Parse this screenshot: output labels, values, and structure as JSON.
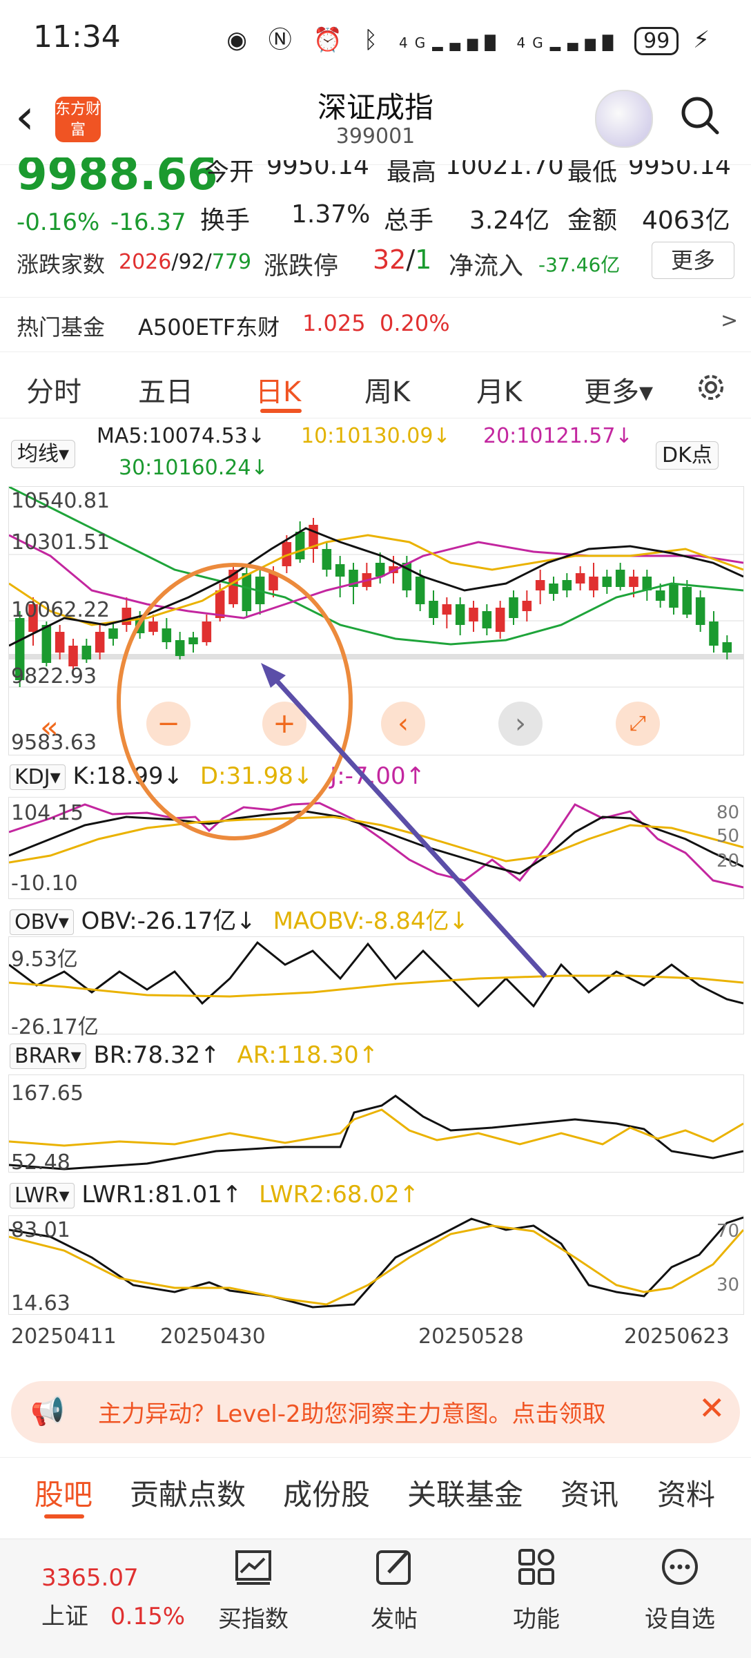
{
  "status": {
    "time": "11:34",
    "battery": "99",
    "net_a": "4G",
    "net_b": "4G"
  },
  "header": {
    "title": "深证成指",
    "code": "399001",
    "logo": "东方财富"
  },
  "quote": {
    "last_price": "9988.66",
    "change_pct": "-0.16%",
    "change": "-16.37",
    "open_label": "今开",
    "open": "9950.14",
    "high_label": "最高",
    "high": "10021.70",
    "low_label": "最低",
    "low": "9950.14",
    "turnover_label": "换手",
    "turnover": "1.37%",
    "volume_label": "总手",
    "volume": "3.24亿",
    "amount_label": "金额",
    "amount": "4063亿",
    "breadth_label": "涨跌家数",
    "breadth_up": "2026",
    "breadth_flat": "92",
    "breadth_down": "779",
    "limit_label": "涨跌停",
    "limit_up": "32",
    "limit_down": "1",
    "inflow_label": "净流入",
    "inflow": "-37.46亿",
    "more": "更多"
  },
  "fund": {
    "label": "热门基金",
    "name": "A500ETF东财",
    "price": "1.025",
    "pct": "0.20%",
    "arrow": ">"
  },
  "period_tabs": [
    "分时",
    "五日",
    "日K",
    "周K",
    "月K",
    "更多▾"
  ],
  "ma": {
    "select": "均线▾",
    "ma5": "MA5:10074.53↓",
    "ma10": "10:10130.09↓",
    "ma20": "20:10121.57↓",
    "ma30": "30:10160.24↓",
    "dk": "DK点"
  },
  "kline_axis": {
    "top": "10540.81",
    "mid1": "10301.51",
    "mid2": "10062.22",
    "mid3": "9822.93",
    "bottom": "9583.63"
  },
  "kdj": {
    "select": "KDJ▾",
    "k": "K:18.99↓",
    "d": "D:31.98↓",
    "j": "J:-7.00↑",
    "top": "104.15",
    "bottom": "-10.10",
    "r80": "80",
    "r50": "50",
    "r20": "20"
  },
  "obv": {
    "select": "OBV▾",
    "obv": "OBV:-26.17亿↓",
    "maobv": "MAOBV:-8.84亿↓",
    "top": "9.53亿",
    "bottom": "-26.17亿"
  },
  "brar": {
    "select": "BRAR▾",
    "br": "BR:78.32↑",
    "ar": "AR:118.30↑",
    "top": "167.65",
    "bottom": "52.48"
  },
  "lwr": {
    "select": "LWR▾",
    "lwr1": "LWR1:81.01↑",
    "lwr2": "LWR2:68.02↑",
    "top": "83.01",
    "bottom": "14.63",
    "r70": "70",
    "r30": "30"
  },
  "dates": [
    "20250411",
    "20250430",
    "20250528",
    "20250623"
  ],
  "banner": {
    "text": "主力异动？Level-2助您洞察主力意图。点击领取"
  },
  "bottom_tabs": [
    "股吧",
    "贡献点数",
    "成份股",
    "关联基金",
    "资讯",
    "资料"
  ],
  "footer": {
    "index_value": "3365.07",
    "index_name": "上证",
    "index_pct": "0.15%",
    "items": [
      "买指数",
      "发帖",
      "功能",
      "设自选"
    ]
  }
}
